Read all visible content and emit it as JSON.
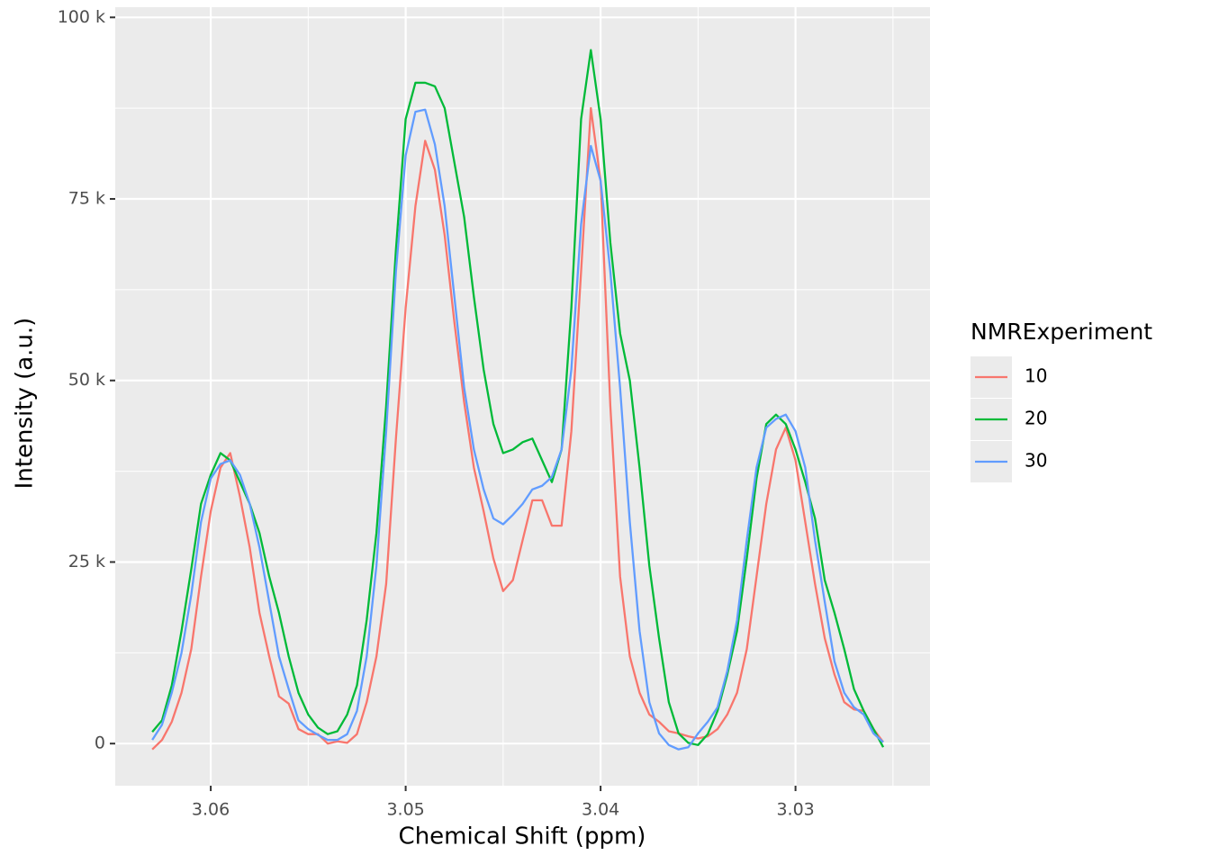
{
  "chart_data": {
    "type": "line",
    "x_label": "Chemical Shift (ppm)",
    "y_label": "Intensity (a.u.)",
    "legend_title": "NMRExperiment",
    "legend": "right",
    "grid": true,
    "x_reversed": true,
    "xlim": [
      3.0649,
      3.0231
    ],
    "xticks": [
      3.06,
      3.05,
      3.04,
      3.03
    ],
    "ylim": [
      -5800,
      101400
    ],
    "yticks": [
      0,
      {
        "value": 25000,
        "label": "25 k"
      },
      {
        "value": 50000,
        "label": "50 k"
      },
      {
        "value": 75000,
        "label": "75 k"
      },
      {
        "value": 100000,
        "label": "100 k"
      }
    ],
    "x": [
      3.063,
      3.0625,
      3.062,
      3.0615,
      3.061,
      3.0605,
      3.06,
      3.0595,
      3.059,
      3.0585,
      3.058,
      3.0575,
      3.057,
      3.0565,
      3.056,
      3.0555,
      3.055,
      3.0545,
      3.054,
      3.0535,
      3.053,
      3.0525,
      3.052,
      3.0515,
      3.051,
      3.0505,
      3.05,
      3.0495,
      3.049,
      3.0485,
      3.048,
      3.0475,
      3.047,
      3.0465,
      3.046,
      3.0455,
      3.045,
      3.0445,
      3.044,
      3.0435,
      3.043,
      3.0425,
      3.042,
      3.0415,
      3.041,
      3.0405,
      3.04,
      3.0395,
      3.039,
      3.0385,
      3.038,
      3.0375,
      3.037,
      3.0365,
      3.036,
      3.0355,
      3.035,
      3.0345,
      3.034,
      3.0335,
      3.033,
      3.0325,
      3.032,
      3.0315,
      3.031,
      3.0305,
      3.03,
      3.0295,
      3.029,
      3.0285,
      3.028,
      3.0275,
      3.027,
      3.0265,
      3.026,
      3.0255
    ],
    "series": [
      {
        "name": "10",
        "color": "#F8766D",
        "values": [
          -800,
          500,
          3000,
          7000,
          13000,
          23000,
          32000,
          38000,
          40000,
          34000,
          27000,
          18000,
          12000,
          6500,
          5500,
          2000,
          1300,
          1300,
          0,
          300,
          100,
          1300,
          5700,
          12000,
          22000,
          42000,
          60000,
          74000,
          83000,
          79000,
          70000,
          58000,
          47000,
          38000,
          32000,
          25500,
          21000,
          22500,
          28000,
          33500,
          33500,
          30000,
          30000,
          43000,
          65000,
          87500,
          77500,
          46500,
          23000,
          12000,
          7000,
          4000,
          3000,
          1700,
          1400,
          1000,
          700,
          1000,
          2000,
          4000,
          7000,
          13000,
          23000,
          33000,
          40500,
          43500,
          39000,
          30500,
          22000,
          14500,
          9500,
          5700,
          4700,
          4500,
          2000,
          200
        ]
      },
      {
        "name": "20",
        "color": "#00BA38",
        "values": [
          1600,
          3200,
          8000,
          15500,
          24000,
          33000,
          37000,
          40000,
          39000,
          36000,
          33000,
          29000,
          23000,
          18000,
          12000,
          7000,
          4000,
          2200,
          1300,
          1700,
          4000,
          8000,
          17000,
          29000,
          46500,
          68000,
          86000,
          91000,
          91000,
          90500,
          87500,
          80000,
          72500,
          61500,
          51500,
          44000,
          40000,
          40500,
          41500,
          42000,
          39000,
          36000,
          40500,
          60000,
          86000,
          95500,
          86000,
          69000,
          56500,
          50000,
          38000,
          24500,
          14500,
          5700,
          1400,
          100,
          -200,
          1300,
          4500,
          9500,
          15500,
          25500,
          36500,
          44000,
          45300,
          44000,
          40500,
          36000,
          31000,
          22500,
          18000,
          13000,
          7500,
          4500,
          2000,
          -500
        ]
      },
      {
        "name": "30",
        "color": "#619CFF",
        "values": [
          500,
          2600,
          7000,
          12500,
          20500,
          30500,
          36500,
          38500,
          39000,
          37000,
          33000,
          27000,
          19500,
          12000,
          7500,
          3200,
          2000,
          1200,
          500,
          500,
          1300,
          4500,
          12000,
          24500,
          43000,
          65000,
          81000,
          87000,
          87300,
          82500,
          74000,
          61500,
          49000,
          40500,
          35000,
          31000,
          30200,
          31500,
          33000,
          35000,
          35500,
          36700,
          40500,
          51500,
          71500,
          82300,
          77500,
          65000,
          49000,
          30500,
          15500,
          5700,
          1400,
          -200,
          -800,
          -500,
          1400,
          3000,
          5000,
          10000,
          17000,
          28000,
          38000,
          43500,
          44700,
          45300,
          43000,
          38000,
          28000,
          19500,
          11300,
          7000,
          5000,
          4000,
          1400,
          200
        ]
      }
    ]
  }
}
